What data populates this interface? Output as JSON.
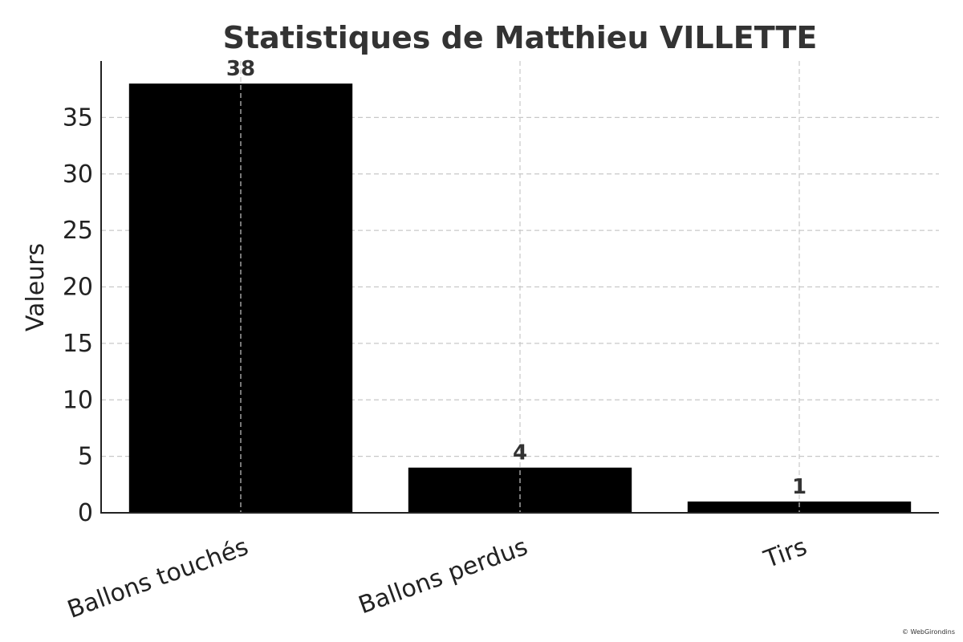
{
  "chart_data": {
    "type": "bar",
    "title": "Statistiques de Matthieu VILLETTE",
    "xlabel": "",
    "ylabel": "Valeurs",
    "categories": [
      "Ballons touchés",
      "Ballons perdus",
      "Tirs"
    ],
    "values": [
      38,
      4,
      1
    ],
    "data_labels": [
      "38",
      "4",
      "1"
    ],
    "ylim": [
      0,
      40
    ],
    "yticks": [
      0,
      5,
      10,
      15,
      20,
      25,
      30,
      35
    ],
    "grid": true,
    "bar_color": "#000000",
    "grid_color": "#c8c8c8"
  },
  "footer": {
    "credit": "© WebGirondins"
  }
}
